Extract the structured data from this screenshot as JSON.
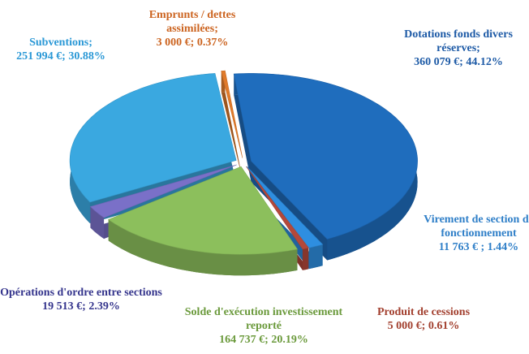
{
  "chart_data": {
    "type": "pie",
    "categories": [
      "Dotations fonds divers réserves;",
      "Virement de section de fonctionnement",
      "Produit de cessions",
      "Solde d'exécution investissement reporté",
      "Opérations d'ordre entre sections",
      "Subventions;",
      "Emprunts / dettes assimilées;"
    ],
    "values": [
      360079,
      11763,
      5000,
      164737,
      19513,
      251994,
      3000
    ],
    "value_labels": [
      "360 079 €; 44.12%",
      "11 763 € ; 1.44%",
      "5 000 €; 0.61%",
      "164 737 €; 20.19%",
      "19 513 €; 2.39%",
      "251 994 €; 30.88%",
      "3 000 €; 0.37%"
    ],
    "colors": [
      "#1f6dbd",
      "#2e8ee0",
      "#b4483a",
      "#8cbf5c",
      "#7a70c8",
      "#3aa8e0",
      "#e07a2a"
    ],
    "label_colors": [
      "#1d5aa6",
      "#2f7fc8",
      "#a23f2e",
      "#6b9a3c",
      "#34348c",
      "#2a98d6",
      "#cc6420"
    ]
  }
}
